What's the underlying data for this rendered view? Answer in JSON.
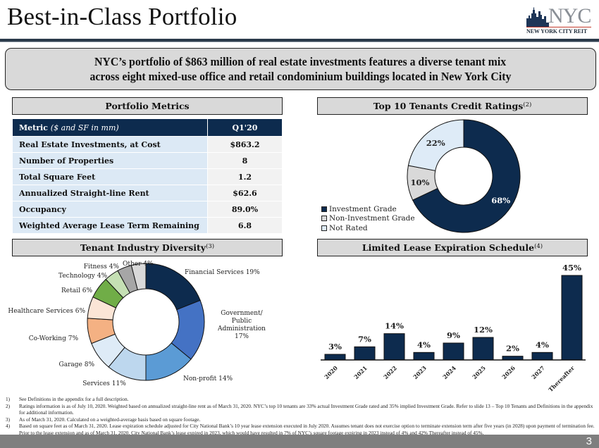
{
  "page": {
    "title": "Best-in-Class Portfolio",
    "page_number": "3"
  },
  "logo": {
    "mark": "NYC",
    "subtitle": "NEW YORK CITY REIT",
    "icon": "skyline-icon"
  },
  "banner": {
    "line1": "NYC’s portfolio of $863 million of real estate investments features a diverse tenant mix",
    "line2": "across eight mixed-use office and retail condominium buildings located in New York City"
  },
  "sections": {
    "portfolio_metrics": {
      "title": "Portfolio Metrics",
      "footnote_ref": ""
    },
    "credit_ratings": {
      "title": "Top 10 Tenants Credit Ratings",
      "footnote_ref": "(2)"
    },
    "industry_diversity": {
      "title": "Tenant Industry Diversity",
      "footnote_ref": "(3)"
    },
    "lease_expiration": {
      "title": "Limited Lease Expiration Schedule",
      "footnote_ref": "(4)"
    }
  },
  "metrics_table": {
    "header": {
      "metric": "Metric",
      "metric_note": "($ and SF in mm)",
      "period": "Q1'20"
    },
    "rows": [
      {
        "label": "Real Estate Investments, at Cost",
        "value": "$863.2"
      },
      {
        "label": "Number of Properties",
        "value": "8"
      },
      {
        "label": "Total Square Feet",
        "value": "1.2"
      },
      {
        "label": "Annualized Straight-line Rent",
        "value": "$62.6"
      },
      {
        "label": "Occupancy",
        "value": "89.0%"
      },
      {
        "label": "Weighted Average Lease Term Remaining",
        "value": "6.8"
      }
    ]
  },
  "chart_data": [
    {
      "type": "pie",
      "subtype": "donut",
      "title": "Top 10 Tenants Credit Ratings",
      "categories": [
        "Investment Grade",
        "Non-Investment Grade",
        "Not Rated"
      ],
      "values": [
        68,
        10,
        22
      ],
      "labels": [
        "68%",
        "10%",
        "22%"
      ],
      "colors": [
        "#0d2b4e",
        "#d9d9d9",
        "#deebf7"
      ],
      "label_colors": [
        "#ffffff",
        "#222222",
        "#222222"
      ],
      "legend": "bottom-left"
    },
    {
      "type": "pie",
      "subtype": "donut",
      "title": "Tenant Industry Diversity",
      "categories": [
        "Financial Services",
        "Government/ Public Administration",
        "Non-profit",
        "Services",
        "Garage",
        "Co-Working",
        "Healthcare Services",
        "Retail",
        "Technology",
        "Fitness",
        "Other"
      ],
      "values": [
        19,
        17,
        14,
        11,
        8,
        7,
        6,
        6,
        4,
        4,
        4
      ],
      "labels": [
        "Financial Services 19%",
        "Government/ Public Administration 17%",
        "Non-profit 14%",
        "Services 11%",
        "Garage 8%",
        "Co-Working 7%",
        "Healthcare Services 6%",
        "Retail 6%",
        "Technology 4%",
        "Fitness 4%",
        "Other 4%"
      ],
      "label_lines": [
        [
          "Financial Services 19%"
        ],
        [
          "Government/",
          "Public",
          "Administration",
          "17%"
        ],
        [
          "Non-profit 14%"
        ],
        [
          "Services 11%"
        ],
        [
          "Garage 8%"
        ],
        [
          "Co-Working 7%"
        ],
        [
          "Healthcare Services 6%"
        ],
        [
          "Retail 6%"
        ],
        [
          "Technology 4%"
        ],
        [
          "Fitness 4%"
        ],
        [
          "Other 4%"
        ]
      ],
      "colors": [
        "#0d2b4e",
        "#4472c4",
        "#5b9bd5",
        "#bdd7ee",
        "#deebf7",
        "#f4b183",
        "#fbe5d6",
        "#70ad47",
        "#c5e0b4",
        "#a6a6a6",
        "#d9d9d9"
      ]
    },
    {
      "type": "bar",
      "title": "Limited Lease Expiration Schedule",
      "categories": [
        "2020",
        "2021",
        "2022",
        "2023",
        "2024",
        "2025",
        "2026",
        "2027",
        "Thereafter"
      ],
      "values": [
        3,
        7,
        14,
        4,
        9,
        12,
        2,
        4,
        45
      ],
      "labels": [
        "3%",
        "7%",
        "14%",
        "4%",
        "9%",
        "12%",
        "2%",
        "4%",
        "45%"
      ],
      "color": "#0d2b4e",
      "xlabel": "",
      "ylabel": "",
      "ylim": [
        0,
        45
      ],
      "grid": false,
      "xtick_rotation": -45
    }
  ],
  "footnotes": [
    {
      "num": "1)",
      "text": "See Definitions in the appendix for a full description."
    },
    {
      "num": "2)",
      "text": "Ratings information is as of July 10, 2020. Weighted based on annualized straight-line rent as of March 31, 2020. NYC’s top 10 tenants are 33% actual Investment Grade rated and 35% implied Investment Grade. Refer to slide 13 – Top 10 Tenants and Definitions in the appendix for additional information."
    },
    {
      "num": "3)",
      "text": "As of March 31, 2020. Calculated on a weighted-average basis based on square footage."
    },
    {
      "num": "4)",
      "text": "Based on square feet as of March 31, 2020. Lease expiration schedule adjusted for City National Bank’s 10 year lease extension executed in July 2020. Assumes tenant does not exercise option to terminate extension term after five years (in 2028) upon payment of termination fee. Prior to the lease extension and as of March 31, 2020, City National Bank’s lease expired in 2023, which would have resulted in 7% of NYC’s square footage expiring in 2023 instead of 4% and 42% Thereafter instead of 45%."
    }
  ]
}
